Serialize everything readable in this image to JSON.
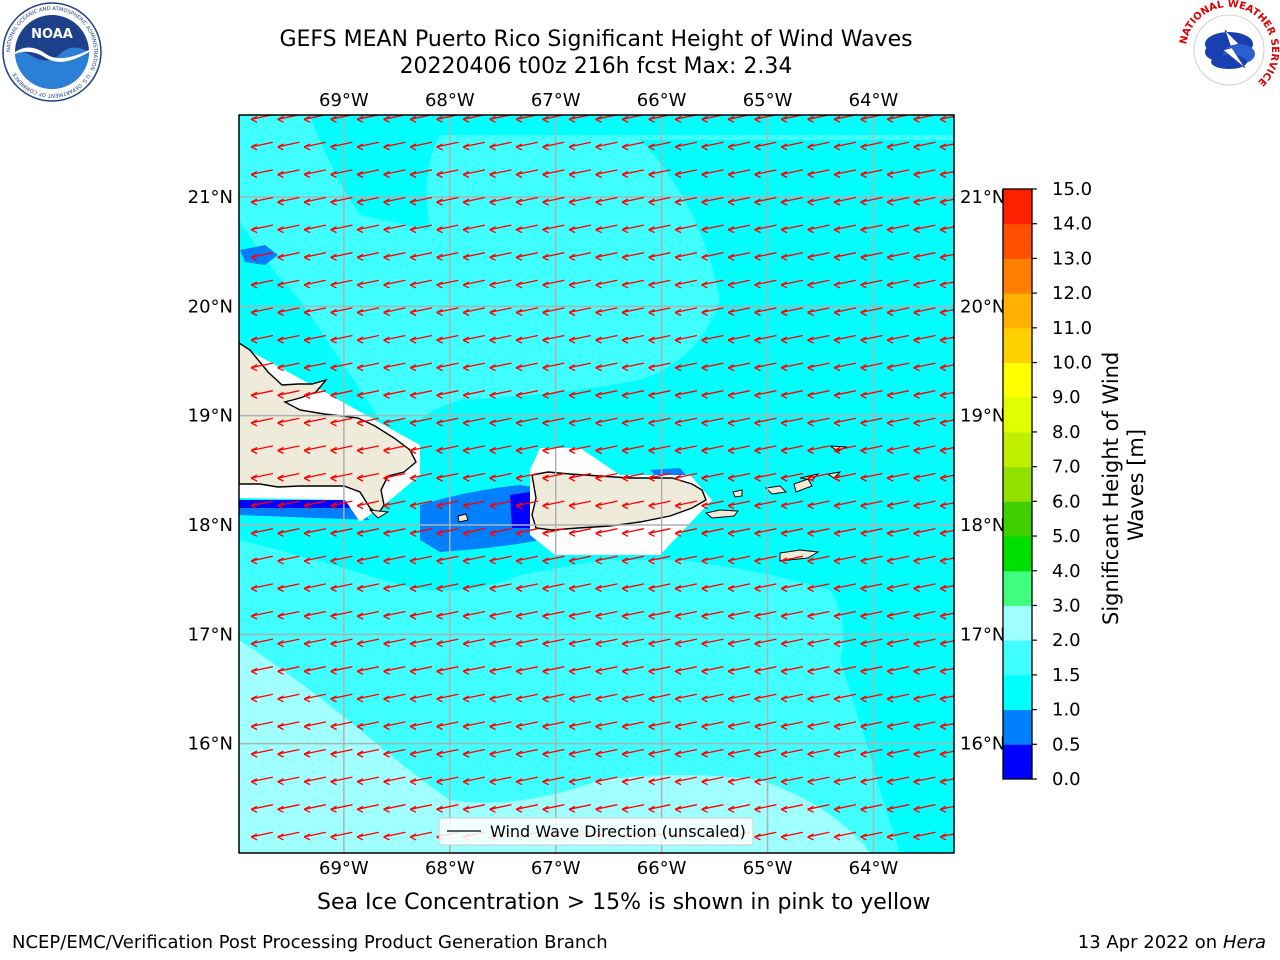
{
  "header": {
    "title_line1": "GEFS MEAN Puerto Rico Significant Height of Wind Waves",
    "title_line2": "20220406 t00z 216h fcst   Max: 2.34"
  },
  "logos": {
    "left": {
      "name": "NOAA",
      "ring_text": "NATIONAL OCEANIC AND ATMOSPHERIC ADMINISTRATION · U.S. DEPARTMENT OF COMMERCE",
      "icon": "noaa-logo-icon"
    },
    "right": {
      "name": "National Weather Service",
      "ring_text": "NATIONAL WEATHER SERVICE",
      "icon": "nws-logo-icon"
    }
  },
  "map": {
    "lon_labels": [
      "69°W",
      "68°W",
      "67°W",
      "66°W",
      "65°W",
      "64°W"
    ],
    "lat_labels": [
      "21°N",
      "20°N",
      "19°N",
      "18°N",
      "17°N",
      "16°N"
    ],
    "lon_values": [
      -69,
      -68,
      -67,
      -66,
      -65,
      -64
    ],
    "lat_values": [
      21,
      20,
      19,
      18,
      17,
      16
    ],
    "extent": {
      "lon_min": -69.99,
      "lon_max": -63.24,
      "lat_min": 15.0,
      "lat_max": 21.75
    },
    "legend_label": "Wind Wave Direction (unscaled)",
    "arrow_color": "#ff0000",
    "land_color": "#efebdb"
  },
  "colorbar": {
    "label": "Significant Height of Wind Waves [m]",
    "ticks": [
      "0.0",
      "0.5",
      "1.0",
      "1.5",
      "2.0",
      "3.0",
      "4.0",
      "5.0",
      "6.0",
      "7.0",
      "8.0",
      "9.0",
      "10.0",
      "11.0",
      "12.0",
      "13.0",
      "14.0",
      "15.0"
    ],
    "colors": [
      "#0000ff",
      "#0080ff",
      "#00ffff",
      "#40ffff",
      "#a0ffff",
      "#40ff80",
      "#00e000",
      "#40d000",
      "#90e000",
      "#c0f000",
      "#e0ff00",
      "#ffff00",
      "#ffd000",
      "#ffb000",
      "#ff8000",
      "#ff5000",
      "#ff2000"
    ]
  },
  "caption": "Sea Ice Concentration > 15% is shown in pink to yellow",
  "footer": {
    "left": "NCEP/EMC/Verification Post Processing Product Generation Branch",
    "right_prefix": "13 Apr 2022 on ",
    "right_host": "Hera"
  }
}
